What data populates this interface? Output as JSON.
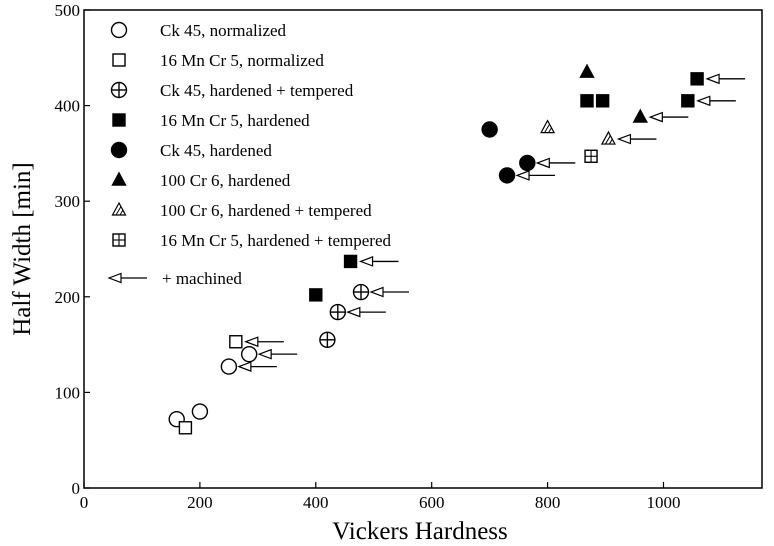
{
  "chart_data": {
    "type": "scatter",
    "xlabel": "Vickers Hardness",
    "ylabel": "Half Width [min]",
    "xlim": [
      0,
      1170
    ],
    "ylim": [
      0,
      500
    ],
    "x_ticks": [
      0,
      200,
      400,
      600,
      800,
      1000
    ],
    "y_ticks": [
      0,
      100,
      200,
      300,
      400,
      500
    ],
    "grid": false,
    "legend_position": "top-left",
    "series": [
      {
        "name": "Ck 45, normalized",
        "marker": "circle-open",
        "points": [
          {
            "x": 160,
            "y": 72
          },
          {
            "x": 200,
            "y": 80
          },
          {
            "x": 250,
            "y": 127
          },
          {
            "x": 285,
            "y": 140
          }
        ],
        "machined": [
          false,
          false,
          true,
          true
        ]
      },
      {
        "name": "16 Mn Cr 5, normalized",
        "marker": "square-open",
        "points": [
          {
            "x": 175,
            "y": 63
          },
          {
            "x": 262,
            "y": 153
          }
        ],
        "machined": [
          false,
          true
        ]
      },
      {
        "name": "Ck 45, hardened + tempered",
        "marker": "circle-plus",
        "points": [
          {
            "x": 420,
            "y": 155
          },
          {
            "x": 438,
            "y": 184
          },
          {
            "x": 478,
            "y": 205
          }
        ],
        "machined": [
          false,
          true,
          true
        ]
      },
      {
        "name": "16 Mn Cr 5, hardened",
        "marker": "square-filled",
        "points": [
          {
            "x": 400,
            "y": 202
          },
          {
            "x": 460,
            "y": 237
          },
          {
            "x": 868,
            "y": 405
          },
          {
            "x": 895,
            "y": 405
          },
          {
            "x": 1042,
            "y": 405
          },
          {
            "x": 1058,
            "y": 428
          }
        ],
        "machined": [
          false,
          true,
          false,
          false,
          true,
          true
        ]
      },
      {
        "name": "Ck 45, hardened",
        "marker": "circle-filled",
        "points": [
          {
            "x": 700,
            "y": 375
          },
          {
            "x": 730,
            "y": 327
          },
          {
            "x": 765,
            "y": 340
          }
        ],
        "machined": [
          false,
          true,
          true
        ]
      },
      {
        "name": "100 Cr 6, hardened",
        "marker": "triangle-filled",
        "points": [
          {
            "x": 868,
            "y": 435
          },
          {
            "x": 960,
            "y": 388
          }
        ],
        "machined": [
          false,
          true
        ]
      },
      {
        "name": "100 Cr 6, hardened + tempered",
        "marker": "triangle-hatched",
        "points": [
          {
            "x": 800,
            "y": 377
          },
          {
            "x": 905,
            "y": 365
          }
        ],
        "machined": [
          false,
          true
        ]
      },
      {
        "name": "16 Mn Cr 5, hardened + tempered",
        "marker": "square-plus",
        "points": [
          {
            "x": 875,
            "y": 347
          }
        ],
        "machined": [
          false
        ]
      }
    ],
    "machined_legend": "+ machined"
  }
}
